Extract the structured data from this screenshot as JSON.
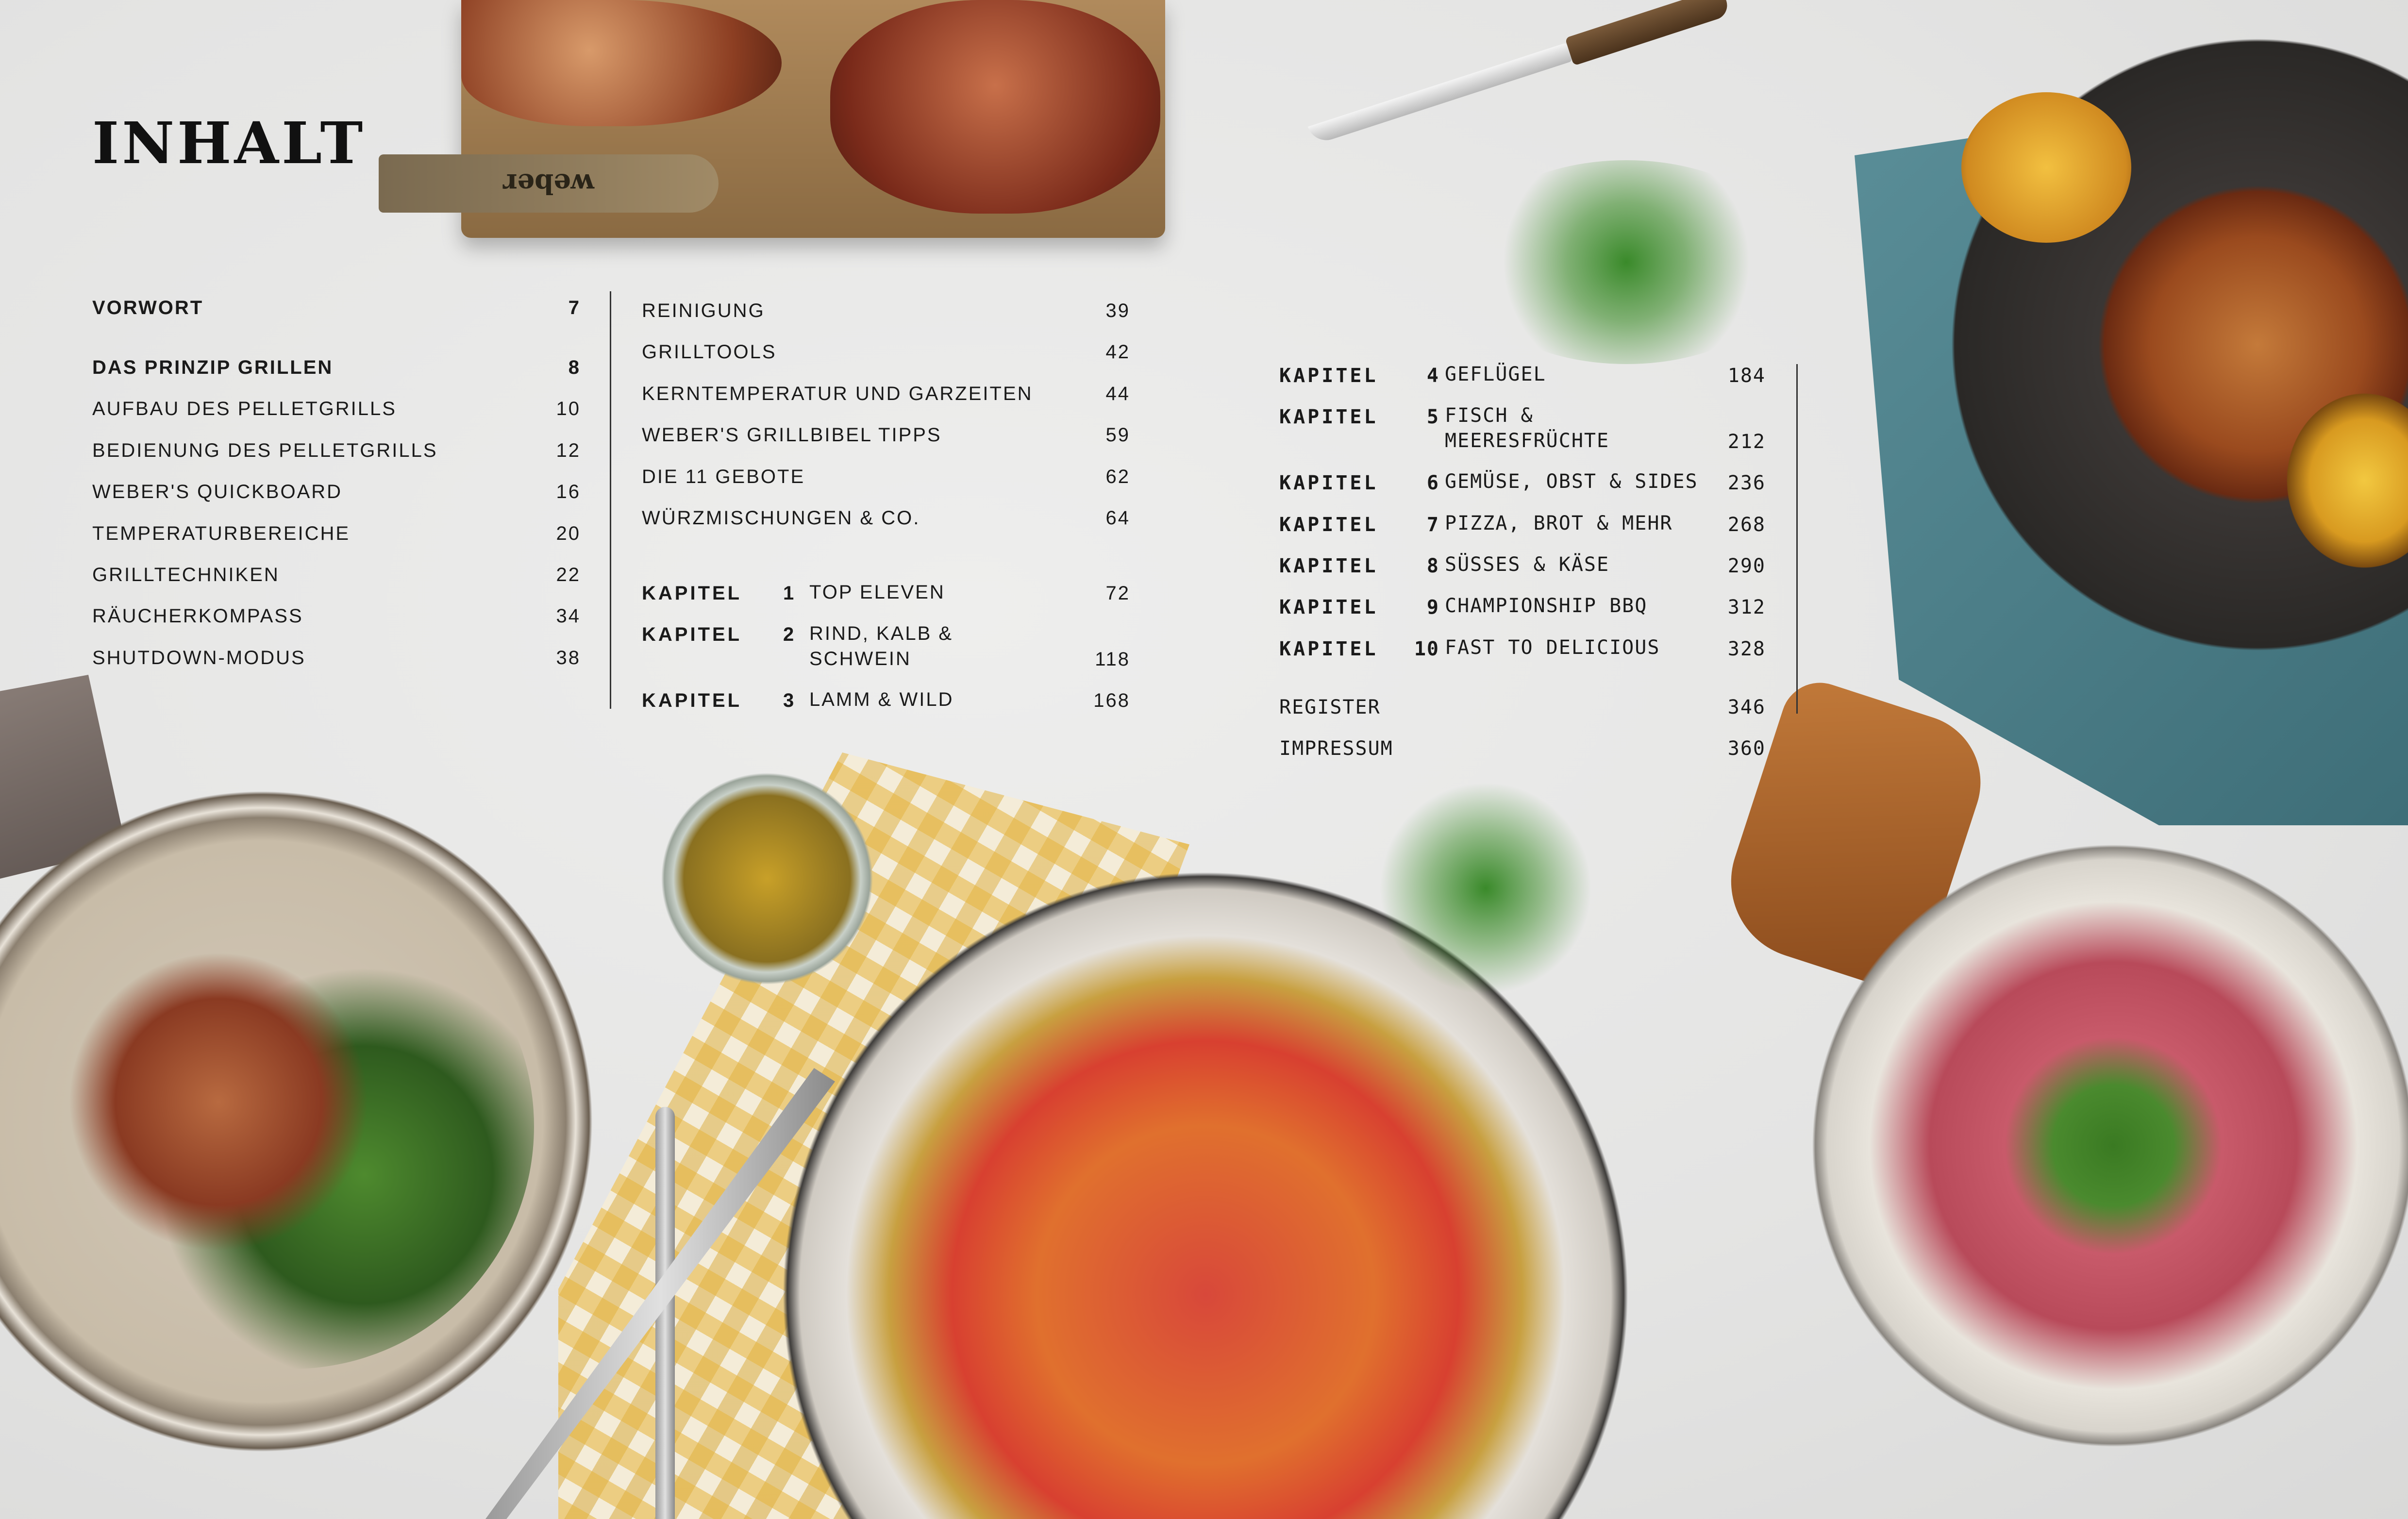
{
  "heading": "INHALT",
  "column1": [
    {
      "label": "VORWORT",
      "page": "7",
      "bold": true
    },
    {
      "label": "DAS PRINZIP GRILLEN",
      "page": "8",
      "bold": true
    },
    {
      "label": "AUFBAU DES PELLETGRILLS",
      "page": "10"
    },
    {
      "label": "BEDIENUNG DES PELLETGRILLS",
      "page": "12"
    },
    {
      "label": "WEBER'S QUICKBOARD",
      "page": "16"
    },
    {
      "label": "TEMPERATURBEREICHE",
      "page": "20"
    },
    {
      "label": "GRILLTECHNIKEN",
      "page": "22"
    },
    {
      "label": "RÄUCHERKOMPASS",
      "page": "34"
    },
    {
      "label": "SHUTDOWN-MODUS",
      "page": "38"
    }
  ],
  "column2": [
    {
      "label": "REINIGUNG",
      "page": "39"
    },
    {
      "label": "GRILLTOOLS",
      "page": "42"
    },
    {
      "label": "KERNTEMPERATUR UND GARZEITEN",
      "page": "44"
    },
    {
      "label": "WEBER'S GRILLBIBEL TIPPS",
      "page": "59"
    },
    {
      "label": "DIE 11 GEBOTE",
      "page": "62"
    },
    {
      "label": "WÜRZMISCHUNGEN & CO.",
      "page": "64"
    }
  ],
  "chapter_word": "KAPITEL",
  "chapters": [
    {
      "num": "1",
      "title": "TOP ELEVEN",
      "page": "72"
    },
    {
      "num": "2",
      "title": "RIND, KALB &",
      "title2": "SCHWEIN",
      "page": "118"
    },
    {
      "num": "3",
      "title": "LAMM & WILD",
      "page": "168"
    },
    {
      "num": "4",
      "title": "GEFLÜGEL",
      "page": "184"
    },
    {
      "num": "5",
      "title": "FISCH &",
      "title2": "MEERESFRÜCHTE",
      "page": "212"
    },
    {
      "num": "6",
      "title": "GEMÜSE, OBST & SIDES",
      "page": "236"
    },
    {
      "num": "7",
      "title": "PIZZA, BROT & MEHR",
      "page": "268"
    },
    {
      "num": "8",
      "title": "SÜSSES & KÄSE",
      "page": "290"
    },
    {
      "num": "9",
      "title": "CHAMPIONSHIP BBQ",
      "page": "312"
    },
    {
      "num": "10",
      "title": "FAST TO DELICIOUS",
      "page": "328"
    }
  ],
  "back_matter": [
    {
      "label": "REGISTER",
      "page": "346"
    },
    {
      "label": "IMPRESSUM",
      "page": "360"
    }
  ],
  "board_brand": "weber",
  "colors": {
    "text": "#1a1a1a",
    "background": "#e6e6e5"
  }
}
